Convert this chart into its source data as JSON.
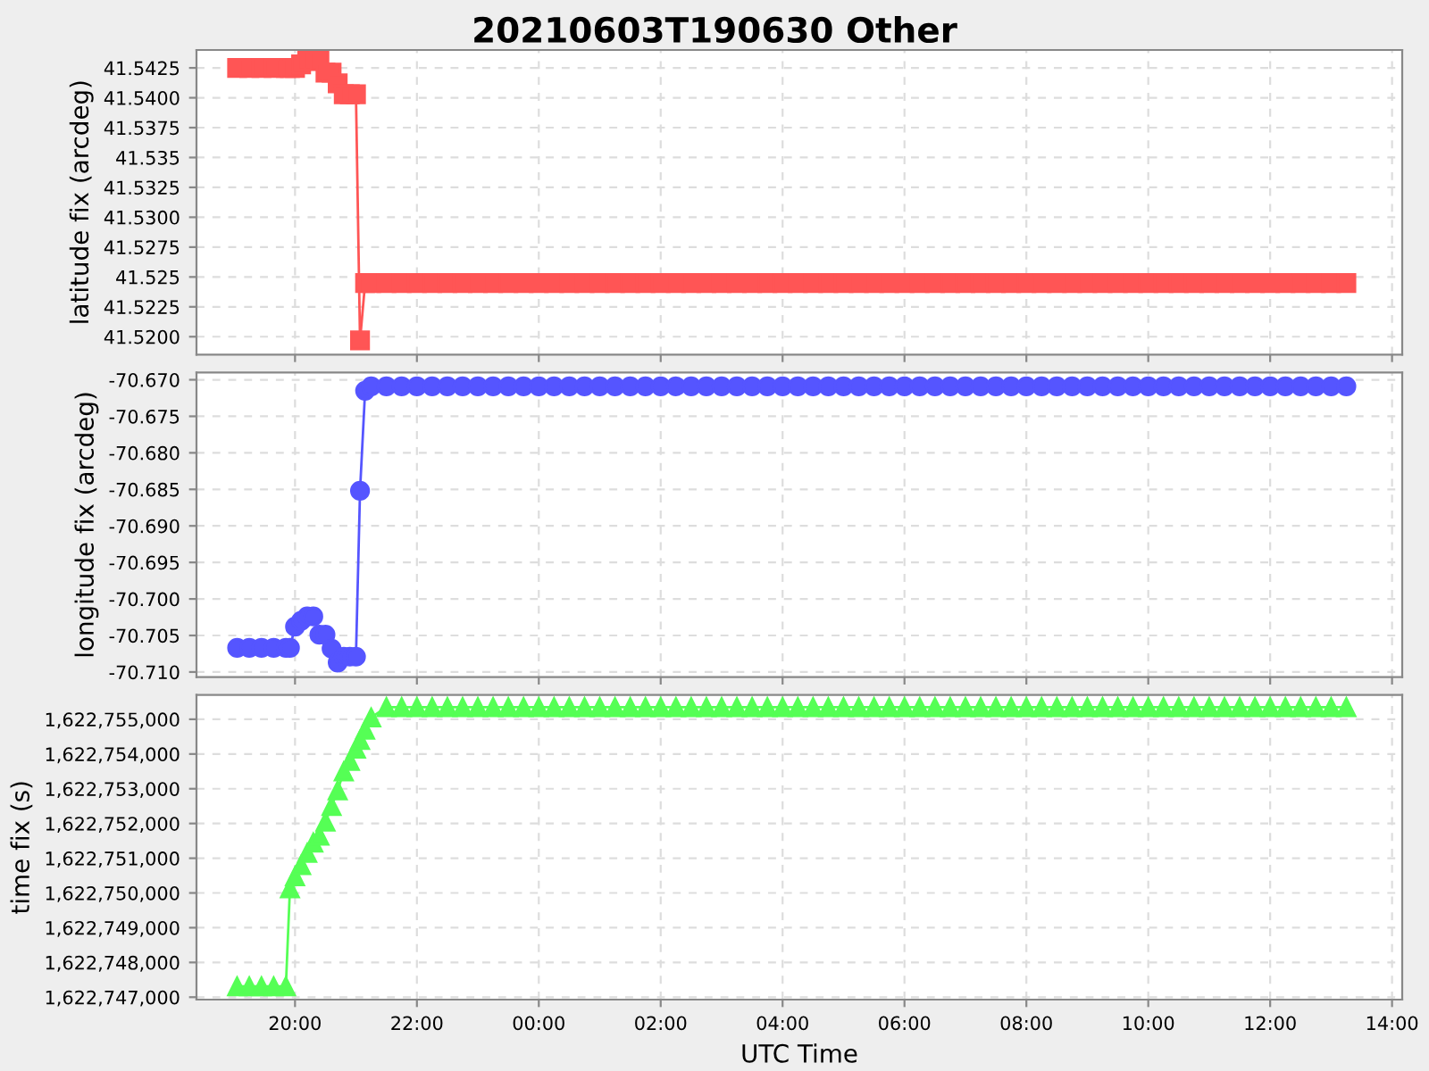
{
  "chart_data": [
    {
      "type": "line",
      "title": "20210603T190630 Other",
      "ylabel": "latitude fix (arcdeg)",
      "marker": "square",
      "grid": true,
      "tick_labels": "y",
      "x": [
        "2021-06-03T19:03",
        "2021-06-03T19:15",
        "2021-06-03T19:27",
        "2021-06-03T19:39",
        "2021-06-03T19:51",
        "2021-06-03T19:55",
        "2021-06-03T20:00",
        "2021-06-03T20:06",
        "2021-06-03T20:12",
        "2021-06-03T20:18",
        "2021-06-03T20:24",
        "2021-06-03T20:30",
        "2021-06-03T20:36",
        "2021-06-03T20:42",
        "2021-06-03T20:48",
        "2021-06-03T20:54",
        "2021-06-03T21:00",
        "2021-06-03T21:04",
        "2021-06-03T21:09",
        "2021-06-03T21:15",
        "2021-06-03T21:30",
        "2021-06-03T21:45",
        "2021-06-03T22:00",
        "2021-06-03T22:15",
        "2021-06-03T22:30",
        "2021-06-03T22:45",
        "2021-06-03T23:00",
        "2021-06-03T23:15",
        "2021-06-03T23:30",
        "2021-06-03T23:45",
        "2021-06-04T00:00",
        "2021-06-04T00:15",
        "2021-06-04T00:30",
        "2021-06-04T00:45",
        "2021-06-04T01:00",
        "2021-06-04T01:15",
        "2021-06-04T01:30",
        "2021-06-04T01:45",
        "2021-06-04T02:00",
        "2021-06-04T02:15",
        "2021-06-04T02:30",
        "2021-06-04T02:45",
        "2021-06-04T03:00",
        "2021-06-04T03:15",
        "2021-06-04T03:30",
        "2021-06-04T03:45",
        "2021-06-04T04:00",
        "2021-06-04T04:15",
        "2021-06-04T04:30",
        "2021-06-04T04:45",
        "2021-06-04T05:00",
        "2021-06-04T05:15",
        "2021-06-04T05:30",
        "2021-06-04T05:45",
        "2021-06-04T06:00",
        "2021-06-04T06:15",
        "2021-06-04T06:30",
        "2021-06-04T06:45",
        "2021-06-04T07:00",
        "2021-06-04T07:15",
        "2021-06-04T07:30",
        "2021-06-04T07:45",
        "2021-06-04T08:00",
        "2021-06-04T08:15",
        "2021-06-04T08:30",
        "2021-06-04T08:45",
        "2021-06-04T09:00",
        "2021-06-04T09:15",
        "2021-06-04T09:30",
        "2021-06-04T09:45",
        "2021-06-04T10:00",
        "2021-06-04T10:15",
        "2021-06-04T10:30",
        "2021-06-04T10:45",
        "2021-06-04T11:00",
        "2021-06-04T11:15",
        "2021-06-04T11:30",
        "2021-06-04T11:45",
        "2021-06-04T12:00",
        "2021-06-04T12:15",
        "2021-06-04T12:30",
        "2021-06-04T12:45",
        "2021-06-04T13:00",
        "2021-06-04T13:15"
      ],
      "series": [
        {
          "color": "#ff5555",
          "values": [
            41.5425,
            41.5425,
            41.5425,
            41.5425,
            41.5425,
            41.5425,
            41.5425,
            41.5428,
            41.5431,
            41.5431,
            41.5431,
            41.5421,
            41.5421,
            41.5412,
            41.5403,
            41.5403,
            41.5403,
            41.5197,
            41.5245,
            41.5245,
            41.5245,
            41.5245,
            41.5245,
            41.5245,
            41.5245,
            41.5245,
            41.5245,
            41.5245,
            41.5245,
            41.5245,
            41.5245,
            41.5245,
            41.5245,
            41.5245,
            41.5245,
            41.5245,
            41.5245,
            41.5245,
            41.5245,
            41.5245,
            41.5245,
            41.5245,
            41.5245,
            41.5245,
            41.5245,
            41.5245,
            41.5245,
            41.5245,
            41.5245,
            41.5245,
            41.5245,
            41.5245,
            41.5245,
            41.5245,
            41.5245,
            41.5245,
            41.5245,
            41.5245,
            41.5245,
            41.5245,
            41.5245,
            41.5245,
            41.5245,
            41.5245,
            41.5245,
            41.5245,
            41.5245,
            41.5245,
            41.5245,
            41.5245,
            41.5245,
            41.5245,
            41.5245,
            41.5245,
            41.5245,
            41.5245,
            41.5245,
            41.5245,
            41.5245,
            41.5245,
            41.5245,
            41.5245,
            41.5245,
            41.5245
          ]
        }
      ],
      "xlim": [
        "2021-06-03T18:23",
        "2021-06-04T14:10"
      ],
      "xticks": [
        {
          "value": "2021-06-03T20:00",
          "label": null
        },
        {
          "value": "2021-06-03T22:00",
          "label": null
        },
        {
          "value": "2021-06-04T00:00",
          "label": null
        },
        {
          "value": "2021-06-04T02:00",
          "label": null
        },
        {
          "value": "2021-06-04T04:00",
          "label": null
        },
        {
          "value": "2021-06-04T06:00",
          "label": null
        },
        {
          "value": "2021-06-04T08:00",
          "label": null
        },
        {
          "value": "2021-06-04T10:00",
          "label": null
        },
        {
          "value": "2021-06-04T12:00",
          "label": null
        },
        {
          "value": "2021-06-04T14:00",
          "label": null
        }
      ],
      "ylim": [
        41.5185,
        41.544
      ],
      "yticks": [
        {
          "value": 41.52,
          "label": "41.5200"
        },
        41.5225,
        41.525,
        41.5275,
        {
          "value": 41.53,
          "label": "41.5300"
        },
        41.5325,
        41.535,
        41.5375,
        {
          "value": 41.54,
          "label": "41.5400"
        },
        41.5425
      ]
    },
    {
      "type": "line",
      "ylabel": "longitude fix (arcdeg)",
      "marker": "circle",
      "grid": true,
      "tick_labels": "y",
      "x": [
        "2021-06-03T19:03",
        "2021-06-03T19:15",
        "2021-06-03T19:27",
        "2021-06-03T19:39",
        "2021-06-03T19:51",
        "2021-06-03T19:55",
        "2021-06-03T20:00",
        "2021-06-03T20:06",
        "2021-06-03T20:12",
        "2021-06-03T20:18",
        "2021-06-03T20:24",
        "2021-06-03T20:30",
        "2021-06-03T20:36",
        "2021-06-03T20:42",
        "2021-06-03T20:48",
        "2021-06-03T20:54",
        "2021-06-03T21:00",
        "2021-06-03T21:04",
        "2021-06-03T21:09",
        "2021-06-03T21:15",
        "2021-06-03T21:30",
        "2021-06-03T21:45",
        "2021-06-03T22:00",
        "2021-06-03T22:15",
        "2021-06-03T22:30",
        "2021-06-03T22:45",
        "2021-06-03T23:00",
        "2021-06-03T23:15",
        "2021-06-03T23:30",
        "2021-06-03T23:45",
        "2021-06-04T00:00",
        "2021-06-04T00:15",
        "2021-06-04T00:30",
        "2021-06-04T00:45",
        "2021-06-04T01:00",
        "2021-06-04T01:15",
        "2021-06-04T01:30",
        "2021-06-04T01:45",
        "2021-06-04T02:00",
        "2021-06-04T02:15",
        "2021-06-04T02:30",
        "2021-06-04T02:45",
        "2021-06-04T03:00",
        "2021-06-04T03:15",
        "2021-06-04T03:30",
        "2021-06-04T03:45",
        "2021-06-04T04:00",
        "2021-06-04T04:15",
        "2021-06-04T04:30",
        "2021-06-04T04:45",
        "2021-06-04T05:00",
        "2021-06-04T05:15",
        "2021-06-04T05:30",
        "2021-06-04T05:45",
        "2021-06-04T06:00",
        "2021-06-04T06:15",
        "2021-06-04T06:30",
        "2021-06-04T06:45",
        "2021-06-04T07:00",
        "2021-06-04T07:15",
        "2021-06-04T07:30",
        "2021-06-04T07:45",
        "2021-06-04T08:00",
        "2021-06-04T08:15",
        "2021-06-04T08:30",
        "2021-06-04T08:45",
        "2021-06-04T09:00",
        "2021-06-04T09:15",
        "2021-06-04T09:30",
        "2021-06-04T09:45",
        "2021-06-04T10:00",
        "2021-06-04T10:15",
        "2021-06-04T10:30",
        "2021-06-04T10:45",
        "2021-06-04T11:00",
        "2021-06-04T11:15",
        "2021-06-04T11:30",
        "2021-06-04T11:45",
        "2021-06-04T12:00",
        "2021-06-04T12:15",
        "2021-06-04T12:30",
        "2021-06-04T12:45",
        "2021-06-04T13:00",
        "2021-06-04T13:15"
      ],
      "series": [
        {
          "color": "#5555ff",
          "values": [
            -70.7067,
            -70.7067,
            -70.7067,
            -70.7067,
            -70.7067,
            -70.7067,
            -70.7038,
            -70.703,
            -70.7024,
            -70.7024,
            -70.7049,
            -70.7049,
            -70.7068,
            -70.7087,
            -70.7079,
            -70.7079,
            -70.7079,
            -70.6852,
            -70.6715,
            -70.6709,
            -70.6709,
            -70.6709,
            -70.6709,
            -70.6709,
            -70.6709,
            -70.6709,
            -70.6709,
            -70.6709,
            -70.6709,
            -70.6709,
            -70.6709,
            -70.6709,
            -70.6709,
            -70.6709,
            -70.6709,
            -70.6709,
            -70.6709,
            -70.6709,
            -70.6709,
            -70.6709,
            -70.6709,
            -70.6709,
            -70.6709,
            -70.6709,
            -70.6709,
            -70.6709,
            -70.6709,
            -70.6709,
            -70.6709,
            -70.6709,
            -70.6709,
            -70.6709,
            -70.6709,
            -70.6709,
            -70.6709,
            -70.6709,
            -70.6709,
            -70.6709,
            -70.6709,
            -70.6709,
            -70.6709,
            -70.6709,
            -70.6709,
            -70.6709,
            -70.6709,
            -70.6709,
            -70.6709,
            -70.6709,
            -70.6709,
            -70.6709,
            -70.6709,
            -70.6709,
            -70.6709,
            -70.6709,
            -70.6709,
            -70.6709,
            -70.6709,
            -70.6709,
            -70.6709,
            -70.6709,
            -70.6709,
            -70.6709,
            -70.6709,
            -70.6709
          ]
        }
      ],
      "xlim": [
        "2021-06-03T18:23",
        "2021-06-04T14:10"
      ],
      "xticks": [
        {
          "value": "2021-06-03T20:00",
          "label": null
        },
        {
          "value": "2021-06-03T22:00",
          "label": null
        },
        {
          "value": "2021-06-04T00:00",
          "label": null
        },
        {
          "value": "2021-06-04T02:00",
          "label": null
        },
        {
          "value": "2021-06-04T04:00",
          "label": null
        },
        {
          "value": "2021-06-04T06:00",
          "label": null
        },
        {
          "value": "2021-06-04T08:00",
          "label": null
        },
        {
          "value": "2021-06-04T10:00",
          "label": null
        },
        {
          "value": "2021-06-04T12:00",
          "label": null
        },
        {
          "value": "2021-06-04T14:00",
          "label": null
        }
      ],
      "ylim": [
        -70.7107,
        -70.669
      ],
      "yticks": [
        {
          "value": -70.71,
          "label": "-70.710"
        },
        -70.705,
        {
          "value": -70.7,
          "label": "-70.700"
        },
        -70.695,
        {
          "value": -70.69,
          "label": "-70.690"
        },
        -70.685,
        {
          "value": -70.68,
          "label": "-70.680"
        },
        -70.675,
        {
          "value": -70.67,
          "label": "-70.670"
        }
      ]
    },
    {
      "type": "line",
      "ylabel": "time fix (s)",
      "xlabel": "UTC Time",
      "marker": "triangle",
      "grid": true,
      "x": [
        "2021-06-03T19:03",
        "2021-06-03T19:15",
        "2021-06-03T19:27",
        "2021-06-03T19:39",
        "2021-06-03T19:51",
        "2021-06-03T19:55",
        "2021-06-03T20:00",
        "2021-06-03T20:06",
        "2021-06-03T20:12",
        "2021-06-03T20:18",
        "2021-06-03T20:24",
        "2021-06-03T20:30",
        "2021-06-03T20:36",
        "2021-06-03T20:42",
        "2021-06-03T20:48",
        "2021-06-03T20:54",
        "2021-06-03T21:00",
        "2021-06-03T21:04",
        "2021-06-03T21:09",
        "2021-06-03T21:15",
        "2021-06-03T21:30",
        "2021-06-03T21:45",
        "2021-06-03T22:00",
        "2021-06-03T22:15",
        "2021-06-03T22:30",
        "2021-06-03T22:45",
        "2021-06-03T23:00",
        "2021-06-03T23:15",
        "2021-06-03T23:30",
        "2021-06-03T23:45",
        "2021-06-04T00:00",
        "2021-06-04T00:15",
        "2021-06-04T00:30",
        "2021-06-04T00:45",
        "2021-06-04T01:00",
        "2021-06-04T01:15",
        "2021-06-04T01:30",
        "2021-06-04T01:45",
        "2021-06-04T02:00",
        "2021-06-04T02:15",
        "2021-06-04T02:30",
        "2021-06-04T02:45",
        "2021-06-04T03:00",
        "2021-06-04T03:15",
        "2021-06-04T03:30",
        "2021-06-04T03:45",
        "2021-06-04T04:00",
        "2021-06-04T04:15",
        "2021-06-04T04:30",
        "2021-06-04T04:45",
        "2021-06-04T05:00",
        "2021-06-04T05:15",
        "2021-06-04T05:30",
        "2021-06-04T05:45",
        "2021-06-04T06:00",
        "2021-06-04T06:15",
        "2021-06-04T06:30",
        "2021-06-04T06:45",
        "2021-06-04T07:00",
        "2021-06-04T07:15",
        "2021-06-04T07:30",
        "2021-06-04T07:45",
        "2021-06-04T08:00",
        "2021-06-04T08:15",
        "2021-06-04T08:30",
        "2021-06-04T08:45",
        "2021-06-04T09:00",
        "2021-06-04T09:15",
        "2021-06-04T09:30",
        "2021-06-04T09:45",
        "2021-06-04T10:00",
        "2021-06-04T10:15",
        "2021-06-04T10:30",
        "2021-06-04T10:45",
        "2021-06-04T11:00",
        "2021-06-04T11:15",
        "2021-06-04T11:30",
        "2021-06-04T11:45",
        "2021-06-04T12:00",
        "2021-06-04T12:15",
        "2021-06-04T12:30",
        "2021-06-04T12:45",
        "2021-06-04T13:00",
        "2021-06-04T13:15"
      ],
      "series": [
        {
          "color": "#55ff55",
          "values": [
            1622747310,
            1622747310,
            1622747310,
            1622747310,
            1622747310,
            1622750130,
            1622750480,
            1622750800,
            1622751150,
            1622751450,
            1622751650,
            1622752050,
            1622752500,
            1622752950,
            1622753500,
            1622753800,
            1622754150,
            1622754400,
            1622754700,
            1622755050,
            1622755350,
            1622755350,
            1622755350,
            1622755350,
            1622755350,
            1622755350,
            1622755350,
            1622755350,
            1622755350,
            1622755350,
            1622755350,
            1622755350,
            1622755350,
            1622755350,
            1622755350,
            1622755350,
            1622755350,
            1622755350,
            1622755350,
            1622755350,
            1622755350,
            1622755350,
            1622755350,
            1622755350,
            1622755350,
            1622755350,
            1622755350,
            1622755350,
            1622755350,
            1622755350,
            1622755350,
            1622755350,
            1622755350,
            1622755350,
            1622755350,
            1622755350,
            1622755350,
            1622755350,
            1622755350,
            1622755350,
            1622755350,
            1622755350,
            1622755350,
            1622755350,
            1622755350,
            1622755350,
            1622755350,
            1622755350,
            1622755350,
            1622755350,
            1622755350,
            1622755350,
            1622755350,
            1622755350,
            1622755350,
            1622755350,
            1622755350,
            1622755350,
            1622755350,
            1622755350,
            1622755350,
            1622755350,
            1622755350,
            1622755350
          ]
        }
      ],
      "xlim": [
        "2021-06-03T18:23",
        "2021-06-04T14:10"
      ],
      "xticks": [
        {
          "value": "2021-06-03T20:00",
          "label": "20:00"
        },
        {
          "value": "2021-06-03T22:00",
          "label": "22:00"
        },
        {
          "value": "2021-06-04T00:00",
          "label": "00:00"
        },
        {
          "value": "2021-06-04T02:00",
          "label": "02:00"
        },
        {
          "value": "2021-06-04T04:00",
          "label": "04:00"
        },
        {
          "value": "2021-06-04T06:00",
          "label": "06:00"
        },
        {
          "value": "2021-06-04T08:00",
          "label": "08:00"
        },
        {
          "value": "2021-06-04T10:00",
          "label": "10:00"
        },
        {
          "value": "2021-06-04T12:00",
          "label": "12:00"
        },
        {
          "value": "2021-06-04T14:00",
          "label": "14:00"
        }
      ],
      "ylim": [
        1622746930,
        1622755700
      ],
      "yticks": [
        {
          "value": 1622747000,
          "label": "1,622,747,000"
        },
        {
          "value": 1622748000,
          "label": "1,622,748,000"
        },
        {
          "value": 1622749000,
          "label": "1,622,749,000"
        },
        {
          "value": 1622750000,
          "label": "1,622,750,000"
        },
        {
          "value": 1622751000,
          "label": "1,622,751,000"
        },
        {
          "value": 1622752000,
          "label": "1,622,752,000"
        },
        {
          "value": 1622753000,
          "label": "1,622,753,000"
        },
        {
          "value": 1622754000,
          "label": "1,622,754,000"
        },
        {
          "value": 1622755000,
          "label": "1,622,755,000"
        }
      ]
    }
  ]
}
